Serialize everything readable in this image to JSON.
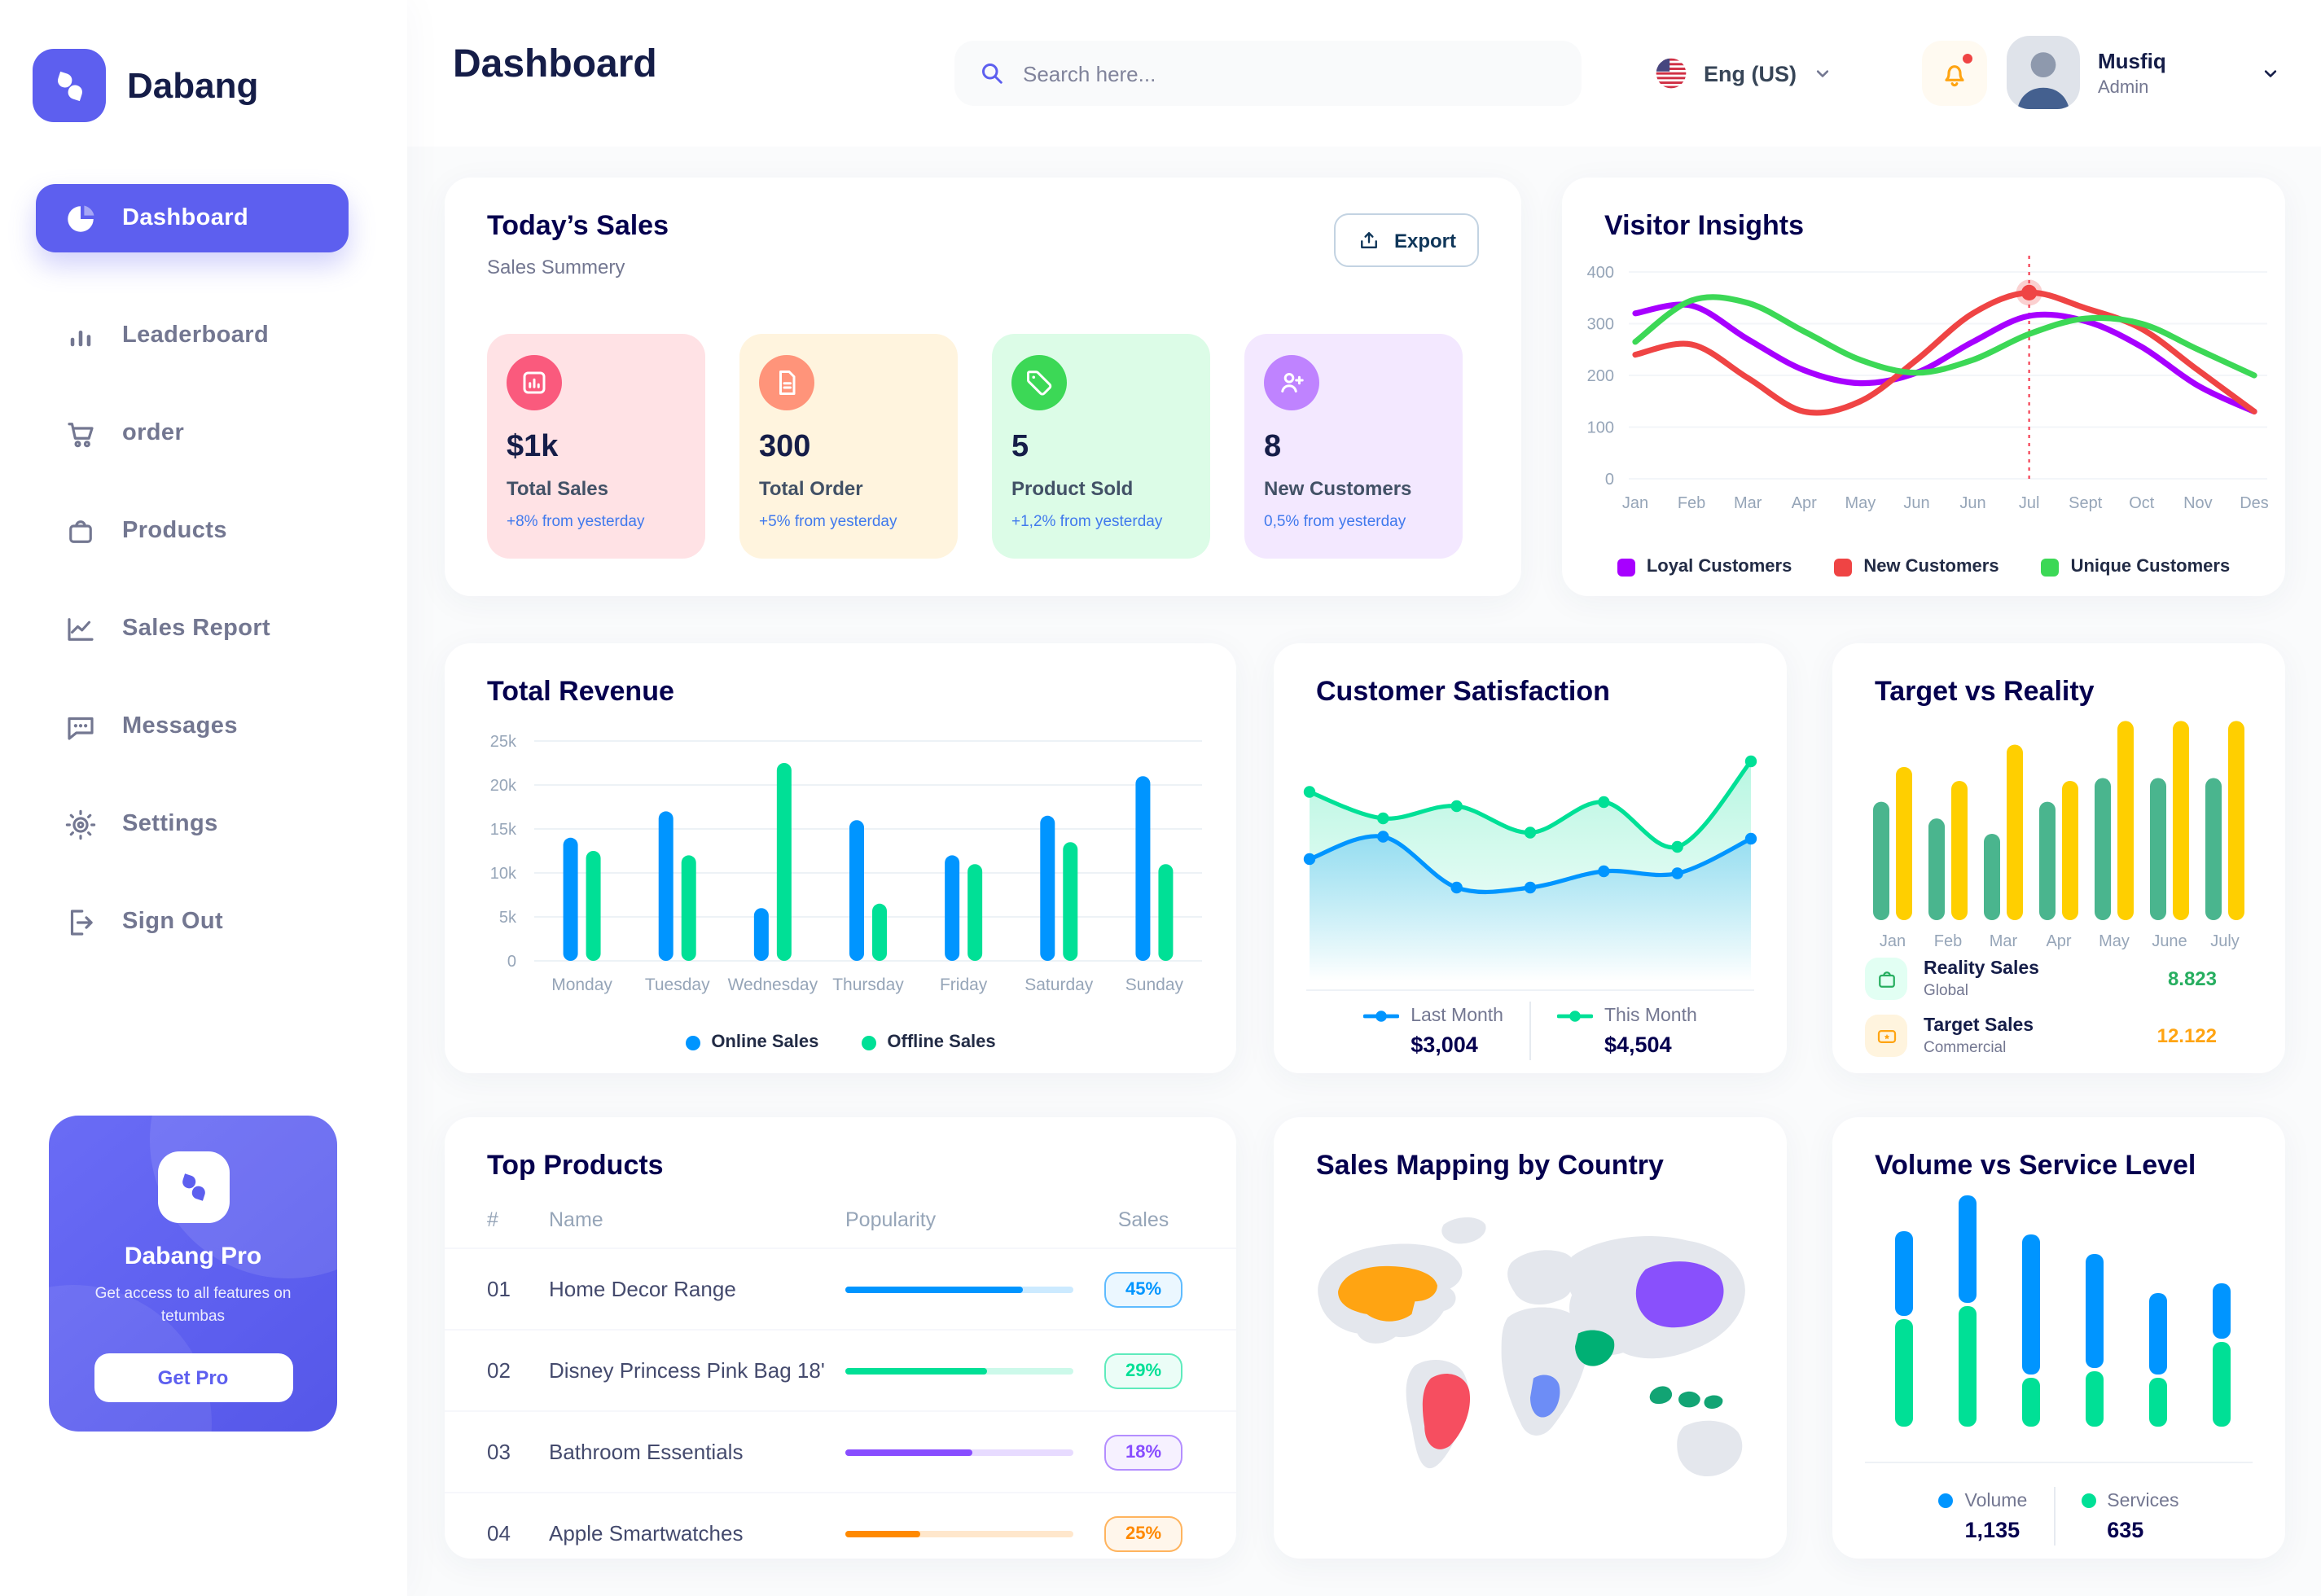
{
  "app": {
    "brand": "Dabang",
    "page_title": "Dashboard",
    "accent": "#5D5FEF",
    "background": "#FAFBFC"
  },
  "header": {
    "search_placeholder": "Search here...",
    "search_icon": "search-icon",
    "language": "Eng (US)",
    "language_flag": "us-flag-icon",
    "notifications_icon": "bell-icon",
    "has_notification_dot": true,
    "user_name": "Musfiq",
    "user_role": "Admin"
  },
  "sidebar": {
    "items": [
      {
        "label": "Dashboard",
        "icon": "pie-chart-icon",
        "active": true
      },
      {
        "label": "Leaderboard",
        "icon": "bar-chart-icon",
        "active": false
      },
      {
        "label": "order",
        "icon": "cart-icon",
        "active": false
      },
      {
        "label": "Products",
        "icon": "bag-icon",
        "active": false
      },
      {
        "label": "Sales Report",
        "icon": "line-chart-icon",
        "active": false
      },
      {
        "label": "Messages",
        "icon": "message-icon",
        "active": false
      },
      {
        "label": "Settings",
        "icon": "gear-icon",
        "active": false
      },
      {
        "label": "Sign Out",
        "icon": "sign-out-icon",
        "active": false
      }
    ],
    "pro_card": {
      "title": "Dabang Pro",
      "subtitle": "Get access to all features on tetumbas",
      "cta_label": "Get Pro"
    }
  },
  "todays_sales": {
    "title": "Today’s Sales",
    "subtitle": "Sales Summery",
    "export_label": "Export",
    "export_icon": "export-icon",
    "change_color": "#4079ED",
    "cards": [
      {
        "value": "$1k",
        "label": "Total Sales",
        "change": "+8% from yesterday",
        "bg": "#FFE2E5",
        "icon_bg": "#FA5A7D",
        "icon": "stat-chart-icon"
      },
      {
        "value": "300",
        "label": "Total Order",
        "change": "+5% from yesterday",
        "bg": "#FFF4DE",
        "icon_bg": "#FF947A",
        "icon": "stat-order-icon"
      },
      {
        "value": "5",
        "label": "Product Sold",
        "change": "+1,2% from yesterday",
        "bg": "#DCFCE7",
        "icon_bg": "#3CD856",
        "icon": "stat-tag-icon"
      },
      {
        "value": "8",
        "label": "New Customers",
        "change": "0,5% from yesterday",
        "bg": "#F3E8FF",
        "icon_bg": "#BF83FF",
        "icon": "stat-user-plus-icon"
      }
    ]
  },
  "chart_data": [
    {
      "id": "visitor_insights",
      "type": "line",
      "title": "Visitor Insights",
      "x": [
        "Jan",
        "Feb",
        "Mar",
        "Apr",
        "May",
        "Jun",
        "Jun",
        "Jul",
        "Sept",
        "Oct",
        "Nov",
        "Des"
      ],
      "ylim": [
        0,
        400
      ],
      "yticks": [
        0,
        100,
        200,
        300,
        400
      ],
      "grid": true,
      "legend_position": "bottom",
      "series": [
        {
          "name": "Loyal Customers",
          "color": "#A700FF",
          "values": [
            320,
            335,
            270,
            210,
            185,
            205,
            265,
            315,
            305,
            255,
            180,
            130
          ]
        },
        {
          "name": "New Customers",
          "color": "#EF4444",
          "values": [
            240,
            260,
            195,
            130,
            150,
            230,
            320,
            360,
            330,
            290,
            210,
            130
          ]
        },
        {
          "name": "Unique Customers",
          "color": "#3CD856",
          "values": [
            265,
            345,
            340,
            285,
            230,
            205,
            230,
            280,
            310,
            300,
            250,
            200
          ]
        }
      ],
      "highlight": {
        "x_index": 7,
        "x_label": "Jul",
        "series": "New Customers",
        "value": 360
      }
    },
    {
      "id": "total_revenue",
      "type": "bar",
      "title": "Total Revenue",
      "categories": [
        "Monday",
        "Tuesday",
        "Wednesday",
        "Thursday",
        "Friday",
        "Saturday",
        "Sunday"
      ],
      "ylim": [
        0,
        25000
      ],
      "ytick_labels": [
        "0",
        "5k",
        "10k",
        "15k",
        "20k",
        "25k"
      ],
      "grid": true,
      "legend_position": "bottom",
      "series": [
        {
          "name": "Online Sales",
          "color": "#0095FF",
          "values": [
            14000,
            17000,
            6000,
            16000,
            12000,
            16500,
            21000
          ]
        },
        {
          "name": "Offline Sales",
          "color": "#00E096",
          "values": [
            12500,
            12000,
            22500,
            6500,
            11000,
            13500,
            11000
          ]
        }
      ]
    },
    {
      "id": "customer_satisfaction",
      "type": "area",
      "title": "Customer Satisfaction",
      "ylim": [
        0,
        100
      ],
      "grid": false,
      "legend_position": "bottom",
      "series": [
        {
          "name": "Last Month",
          "total": "$3,004",
          "color": "#0095FF",
          "values": [
            42,
            53,
            28,
            28,
            36,
            35,
            52
          ]
        },
        {
          "name": "This Month",
          "total": "$4,504",
          "color": "#00E096",
          "values": [
            75,
            62,
            68,
            55,
            70,
            48,
            90
          ]
        }
      ]
    },
    {
      "id": "target_vs_reality",
      "type": "bar",
      "title": "Target vs Reality",
      "categories": [
        "Jan",
        "Feb",
        "Mar",
        "Apr",
        "May",
        "June",
        "July"
      ],
      "ylim": [
        0,
        14.5
      ],
      "grid": false,
      "legend_position": "bottom-list",
      "series": [
        {
          "name": "Reality Sales",
          "subtitle": "Global",
          "total": "8.823",
          "color": "#4AB58E",
          "value_color": "#27AE60",
          "icon": "bag-icon",
          "icon_bg": "#E2FFF3",
          "values": [
            8.5,
            7.3,
            6.2,
            8.5,
            10.2,
            10.2,
            10.2
          ]
        },
        {
          "name": "Target Sales",
          "subtitle": "Commercial",
          "total": "12.122",
          "color": "#FFCF00",
          "value_color": "#FFA412",
          "icon": "ticket-icon",
          "icon_bg": "#FFF4DE",
          "values": [
            11,
            10,
            12.6,
            10,
            14.3,
            14.3,
            14.3
          ]
        }
      ]
    },
    {
      "id": "volume_service",
      "type": "stacked-bar",
      "title": "Volume vs Service Level",
      "grid": false,
      "legend_position": "bottom",
      "series": [
        {
          "name": "Volume",
          "total": "1,135",
          "color": "#0095FF",
          "values": [
            26,
            33,
            43,
            35,
            25,
            17
          ]
        },
        {
          "name": "Services",
          "total": "635",
          "color": "#00E096",
          "values": [
            33,
            37,
            15,
            17,
            15,
            26
          ]
        }
      ]
    }
  ],
  "top_products": {
    "title": "Top Products",
    "headers": [
      "#",
      "Name",
      "Popularity",
      "Sales"
    ],
    "rows": [
      {
        "num": "01",
        "name": "Home Decor Range",
        "popularity": 78,
        "sales": "45%",
        "color": "#0095FF"
      },
      {
        "num": "02",
        "name": "Disney Princess Pink Bag 18'",
        "popularity": 62,
        "sales": "29%",
        "color": "#00E096"
      },
      {
        "num": "03",
        "name": "Bathroom Essentials",
        "popularity": 56,
        "sales": "18%",
        "color": "#884DFF"
      },
      {
        "num": "04",
        "name": "Apple Smartwatches",
        "popularity": 33,
        "sales": "25%",
        "color": "#FF8900"
      }
    ]
  },
  "sales_map": {
    "title": "Sales Mapping by Country",
    "countries": [
      {
        "name": "United States",
        "color": "#FFA412"
      },
      {
        "name": "Brazil",
        "color": "#F64E60"
      },
      {
        "name": "Saudi Arabia",
        "color": "#00B074"
      },
      {
        "name": "DR Congo",
        "color": "#6D8DF6"
      },
      {
        "name": "China",
        "color": "#8950FC"
      },
      {
        "name": "Indonesia",
        "color": "#12A474"
      }
    ]
  }
}
